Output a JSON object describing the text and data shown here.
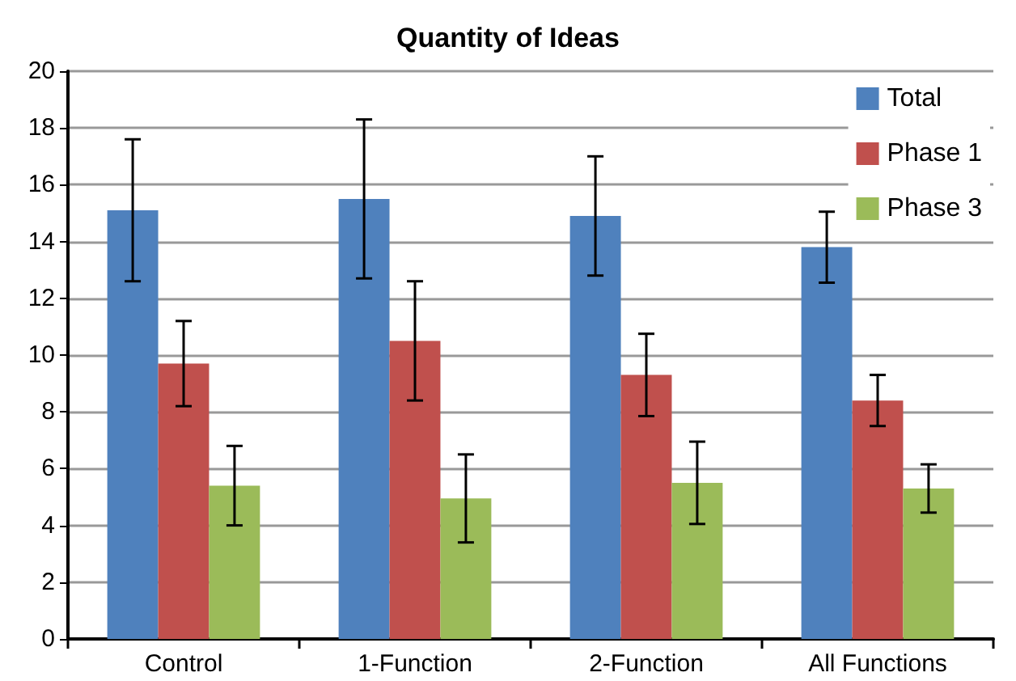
{
  "chart_data": {
    "type": "bar",
    "title": "Quantity of Ideas",
    "categories": [
      "Control",
      "1-Function",
      "2-Function",
      "All Functions"
    ],
    "series": [
      {
        "name": "Total",
        "color": "#4f81bd",
        "values": [
          15.1,
          15.5,
          14.9,
          13.8
        ],
        "errors": [
          2.5,
          2.8,
          2.1,
          1.25
        ]
      },
      {
        "name": "Phase 1",
        "color": "#c0504d",
        "values": [
          9.7,
          10.5,
          9.3,
          8.4
        ],
        "errors": [
          1.5,
          2.1,
          1.45,
          0.9
        ]
      },
      {
        "name": "Phase 3",
        "color": "#9bbb59",
        "values": [
          5.4,
          4.95,
          5.5,
          5.3
        ],
        "errors": [
          1.4,
          1.55,
          1.45,
          0.85
        ]
      }
    ],
    "ylim": [
      0,
      20
    ],
    "yticks": [
      0,
      2,
      4,
      6,
      8,
      10,
      12,
      14,
      16,
      18,
      20
    ],
    "grid": "y",
    "legend": "top right"
  }
}
